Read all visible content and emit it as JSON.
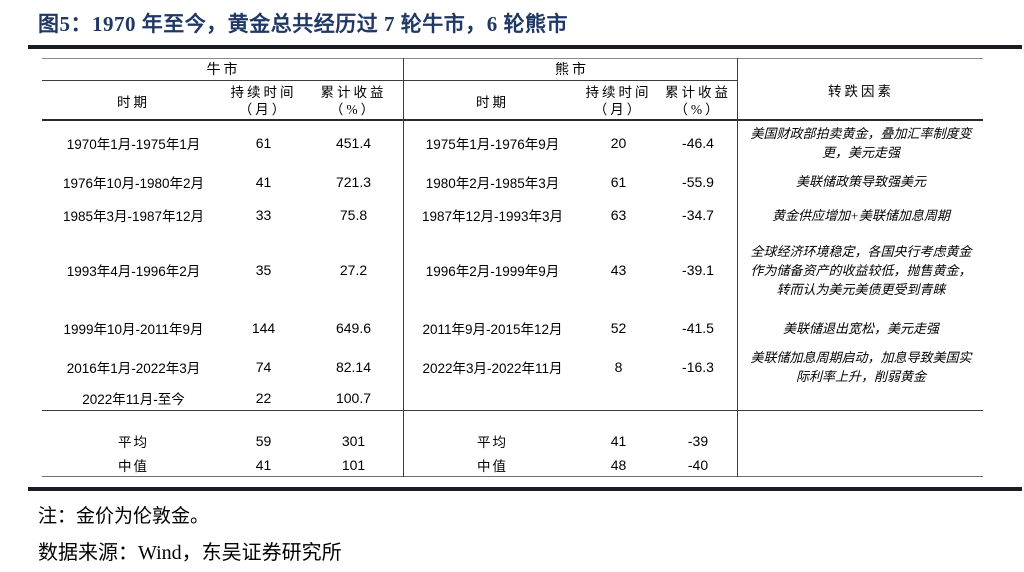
{
  "figure": {
    "title": "图5：1970 年至今，黄金总共经历过 7 轮牛市，6 轮熊市",
    "note": "注：金价为伦敦金。",
    "source": "数据来源：Wind，东吴证券研究所"
  },
  "colors": {
    "title_navy": "#1F3864",
    "rule_dark": "#1A1C23",
    "text": "#000000"
  },
  "table": {
    "sections": {
      "bull": "牛市",
      "bear": "熊市",
      "factor": "转跌因素"
    },
    "columns": {
      "period": "时期",
      "duration_line1": "持续时间",
      "duration_line2": "（月）",
      "return_line1": "累计收益",
      "return_line2": "（%）"
    },
    "rows": [
      {
        "bull_period": "1970年1月-1975年1月",
        "bull_duration": "61",
        "bull_return": "451.4",
        "bear_period": "1975年1月-1976年9月",
        "bear_duration": "20",
        "bear_return": "-46.4",
        "factor": "美国财政部拍卖黄金，叠加汇率制度变更，美元走强"
      },
      {
        "bull_period": "1976年10月-1980年2月",
        "bull_duration": "41",
        "bull_return": "721.3",
        "bear_period": "1980年2月-1985年3月",
        "bear_duration": "61",
        "bear_return": "-55.9",
        "factor": "美联储政策导致强美元"
      },
      {
        "bull_period": "1985年3月-1987年12月",
        "bull_duration": "33",
        "bull_return": "75.8",
        "bear_period": "1987年12月-1993年3月",
        "bear_duration": "63",
        "bear_return": "-34.7",
        "factor": "黄金供应增加+美联储加息周期"
      },
      {
        "bull_period": "1993年4月-1996年2月",
        "bull_duration": "35",
        "bull_return": "27.2",
        "bear_period": "1996年2月-1999年9月",
        "bear_duration": "43",
        "bear_return": "-39.1",
        "factor": "全球经济环境稳定，各国央行考虑黄金作为储备资产的收益较低，抛售黄金，转而认为美元美债更受到青睐"
      },
      {
        "bull_period": "1999年10月-2011年9月",
        "bull_duration": "144",
        "bull_return": "649.6",
        "bear_period": "2011年9月-2015年12月",
        "bear_duration": "52",
        "bear_return": "-41.5",
        "factor": "美联储退出宽松，美元走强"
      },
      {
        "bull_period": "2016年1月-2022年3月",
        "bull_duration": "74",
        "bull_return": "82.14",
        "bear_period": "2022年3月-2022年11月",
        "bear_duration": "8",
        "bear_return": "-16.3",
        "factor": "美联储加息周期启动，加息导致美国实际利率上升，削弱黄金"
      },
      {
        "bull_period": "2022年11月-至今",
        "bull_duration": "22",
        "bull_return": "100.7",
        "bear_period": "",
        "bear_duration": "",
        "bear_return": "",
        "factor": ""
      }
    ],
    "summary": [
      {
        "bull_label": "平均",
        "bull_duration": "59",
        "bull_return": "301",
        "bear_label": "平均",
        "bear_duration": "41",
        "bear_return": "-39"
      },
      {
        "bull_label": "中值",
        "bull_duration": "41",
        "bull_return": "101",
        "bear_label": "中值",
        "bear_duration": "48",
        "bear_return": "-40"
      }
    ]
  }
}
